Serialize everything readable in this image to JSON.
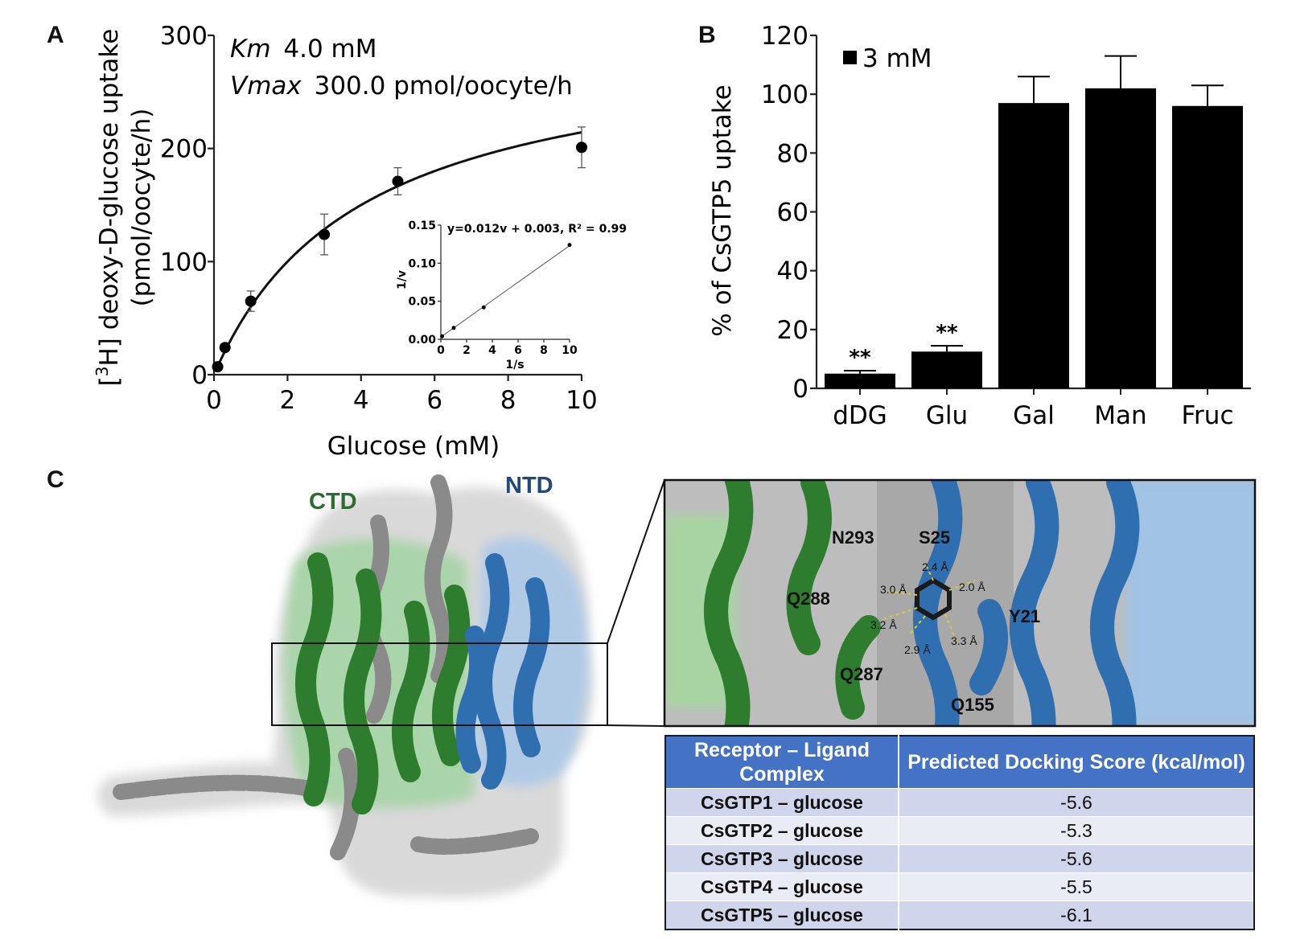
{
  "panels": {
    "a": "A",
    "b": "B",
    "c": "C"
  },
  "chart_data": [
    {
      "type": "scatter",
      "annotation_line1_italic": "Km",
      "annotation_line1_value": "4.0 mM",
      "annotation_line2_italic": "Vmax",
      "annotation_line2_value": "300.0 pmol/oocyte/h",
      "xlabel": "Glucose (mM)",
      "ylabel_line1_prefix": "[",
      "ylabel_line1_sup": "3",
      "ylabel_line1_suffix": "H] deoxy-D-glucose uptake",
      "ylabel_line2": "(pmol/oocyte/h)",
      "xlim": [
        0,
        10
      ],
      "ylim": [
        0,
        300
      ],
      "x_ticks": [
        0,
        2,
        4,
        6,
        8,
        10
      ],
      "y_ticks": [
        0,
        100,
        200,
        300
      ],
      "points": [
        {
          "x": 0.1,
          "y": 7,
          "err": 3
        },
        {
          "x": 0.3,
          "y": 24,
          "err": 3
        },
        {
          "x": 1,
          "y": 65,
          "err": 9
        },
        {
          "x": 3,
          "y": 124,
          "err": 18
        },
        {
          "x": 5,
          "y": 171,
          "err": 12
        },
        {
          "x": 10,
          "y": 201,
          "err": 18
        }
      ],
      "fit": {
        "model": "michaelis-menten",
        "km": 4.0,
        "vmax": 300.0
      },
      "inset": {
        "type": "scatter",
        "equation": "y=0.012v + 0.003, R² = 0.99",
        "xlabel": "1/s",
        "ylabel": "1/v",
        "xlim": [
          0,
          10
        ],
        "ylim": [
          0,
          0.15
        ],
        "x_ticks": [
          0,
          2,
          4,
          6,
          8,
          10
        ],
        "y_ticks": [
          "0.00",
          "0.05",
          "0.10",
          "0.15"
        ],
        "points": [
          {
            "x": 0.1,
            "y": 0.004
          },
          {
            "x": 1,
            "y": 0.015
          },
          {
            "x": 3.33,
            "y": 0.042
          },
          {
            "x": 10,
            "y": 0.124
          }
        ]
      }
    },
    {
      "type": "bar",
      "categories": [
        "dDG",
        "Glu",
        "Gal",
        "Man",
        "Fruc"
      ],
      "series": [
        {
          "name": "3 mM",
          "values": [
            5,
            12.5,
            97,
            102,
            96
          ],
          "errors": [
            1,
            2,
            9,
            11,
            7
          ]
        }
      ],
      "significance": [
        "**",
        "**",
        "",
        "",
        ""
      ],
      "ylabel": "% of CsGTP5 uptake",
      "ylim": [
        0,
        120
      ],
      "y_ticks": [
        0,
        20,
        40,
        60,
        80,
        100,
        120
      ],
      "legend": "top-left"
    }
  ],
  "structure": {
    "ctd_label": "CTD",
    "ntd_label": "NTD",
    "residues": [
      "N293",
      "S25",
      "Q288",
      "Y21",
      "Q287",
      "Q155"
    ],
    "distances": [
      "2.4 Å",
      "3.0 Å",
      "2.0 Å",
      "3.2 Å",
      "2.9 Å",
      "3.3 Å"
    ]
  },
  "table": {
    "headers": [
      "Receptor – Ligand Complex",
      "Predicted Docking Score (kcal/mol)"
    ],
    "rows": [
      {
        "complex": "CsGTP1 – glucose",
        "score": "-5.6"
      },
      {
        "complex": "CsGTP2 – glucose",
        "score": "-5.3"
      },
      {
        "complex": "CsGTP3 – glucose",
        "score": "-5.6"
      },
      {
        "complex": "CsGTP4 – glucose",
        "score": "-5.5"
      },
      {
        "complex": "CsGTP5 – glucose",
        "score": "-6.1"
      }
    ]
  },
  "colors": {
    "ctd": "#2e7d2e",
    "ntd": "#2f6fb0",
    "other": "#8a8a8a",
    "header": "#4472c4"
  }
}
